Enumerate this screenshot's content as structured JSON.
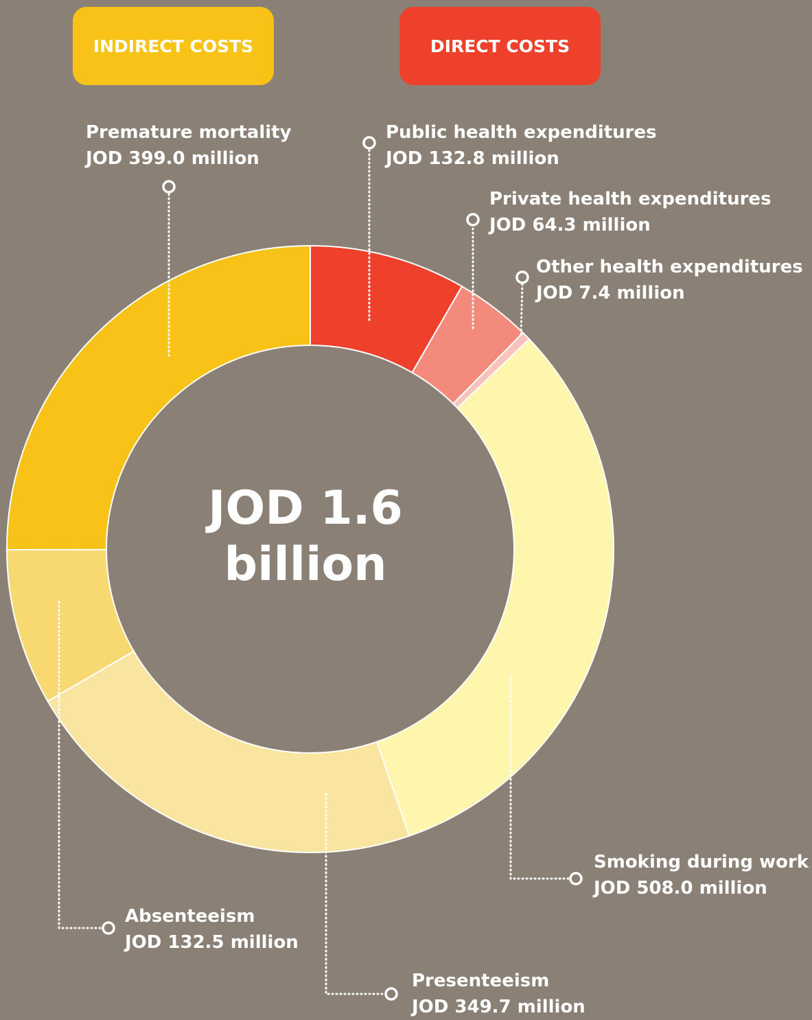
{
  "legend": {
    "indirect": {
      "label": "INDIRECT COSTS",
      "color": "#f6c316"
    },
    "direct": {
      "label": "DIRECT COSTS",
      "color": "#ef402b"
    }
  },
  "center": {
    "line1": "JOD 1.6",
    "line2": "billion"
  },
  "chart_data": {
    "type": "pie",
    "unit": "JOD million",
    "total_label": "JOD 1.6 billion",
    "slices": [
      {
        "name": "Public health expenditures",
        "value": 132.8,
        "value_label": "JOD 132.8 million",
        "group": "direct",
        "color": "#ef402b"
      },
      {
        "name": "Private health expenditures",
        "value": 64.3,
        "value_label": "JOD 64.3 million",
        "group": "direct",
        "color": "#f48a7b"
      },
      {
        "name": "Other health expenditures",
        "value": 7.4,
        "value_label": "JOD 7.4 million",
        "group": "direct",
        "color": "#f8c3bb"
      },
      {
        "name": "Smoking during work",
        "value": 508.0,
        "value_label": "JOD 508.0 million",
        "group": "indirect",
        "color": "#fef6ac"
      },
      {
        "name": "Presenteeism",
        "value": 349.7,
        "value_label": "JOD 349.7 million",
        "group": "indirect",
        "color": "#fae5a0"
      },
      {
        "name": "Absenteeism",
        "value": 132.5,
        "value_label": "JOD 132.5 million",
        "group": "indirect",
        "color": "#f8d971"
      },
      {
        "name": "Premature mortality",
        "value": 399.0,
        "value_label": "JOD 399.0 million",
        "group": "indirect",
        "color": "#f6c316"
      }
    ]
  }
}
